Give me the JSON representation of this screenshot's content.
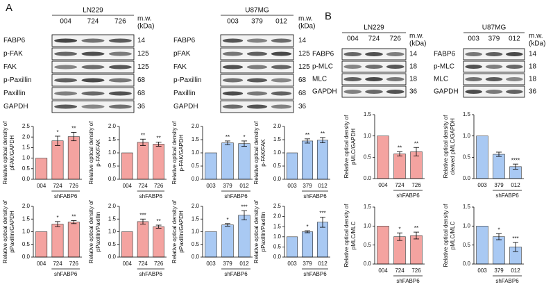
{
  "panel_labels": [
    "A",
    "B"
  ],
  "blots": [
    {
      "title": "LN229",
      "lanes": [
        "004",
        "724",
        "726"
      ],
      "mw_header": [
        "m.w.",
        "(kDa)"
      ],
      "rows": [
        {
          "label": "FABP6",
          "mw": 14
        },
        {
          "label": "p-FAK",
          "mw": 125
        },
        {
          "label": "FAK",
          "mw": 125
        },
        {
          "label": "p-Paxillin",
          "mw": 68
        },
        {
          "label": "Paxillin",
          "mw": 68
        },
        {
          "label": "GAPDH",
          "mw": 36
        }
      ]
    },
    {
      "title": "U87MG",
      "lanes": [
        "003",
        "379",
        "012"
      ],
      "mw_header": [
        "m.w.",
        "(kDa)"
      ],
      "rows": [
        {
          "label": "FABP6",
          "mw": 14
        },
        {
          "label": "pFAK",
          "mw": 125
        },
        {
          "label": "FAK",
          "mw": 125
        },
        {
          "label": "p-Paxillin",
          "mw": 68
        },
        {
          "label": "Paxillin",
          "mw": 68
        },
        {
          "label": "GAPDH",
          "mw": 36
        }
      ]
    },
    {
      "title": "LN229",
      "lanes": [
        "004",
        "724",
        "726"
      ],
      "mw_header": [
        "m.w.",
        "(kDa)"
      ],
      "rows": [
        {
          "label": "FABP6",
          "mw": 14
        },
        {
          "label": "p-MLC",
          "mw": 18
        },
        {
          "label": "MLC",
          "mw": 18
        },
        {
          "label": "GAPDH",
          "mw": 36
        }
      ]
    },
    {
      "title": "U87MG",
      "lanes": [
        "003",
        "379",
        "012"
      ],
      "mw_header": [
        "m.w.",
        "(kDa)"
      ],
      "rows": [
        {
          "label": "FABP6",
          "mw": 14
        },
        {
          "label": "p-MLC",
          "mw": 18
        },
        {
          "label": "MLC",
          "mw": 18
        },
        {
          "label": "GAPDH",
          "mw": 36
        }
      ]
    }
  ],
  "chart_data": [
    {
      "type": "bar",
      "ylabel": [
        "Relative optical density of",
        "pFAK/GAPDH"
      ],
      "categories": [
        "004",
        "724",
        "726"
      ],
      "group_label": "shFABP6",
      "values": [
        1,
        1.82,
        2.02
      ],
      "errors": [
        null,
        0.22,
        0.2
      ],
      "annotations": [
        null,
        "*",
        "**"
      ],
      "color": "#f4a3a0",
      "ylim": [
        0,
        2.5
      ],
      "yticks": [
        {
          "value": 0,
          "label": "0.0"
        },
        0.5,
        {
          "value": 1,
          "label": "1.0"
        },
        1.5,
        {
          "value": 2,
          "label": "2.0"
        },
        2.5
      ]
    },
    {
      "type": "bar",
      "ylabel": [
        "Relative optical density of",
        "p-FAK/FAK"
      ],
      "categories": [
        "004",
        "724",
        "726"
      ],
      "group_label": "shFABP6",
      "values": [
        1,
        1.4,
        1.33
      ],
      "errors": [
        null,
        0.12,
        0.08
      ],
      "annotations": [
        null,
        "**",
        "**"
      ],
      "color": "#f4a3a0",
      "ylim": [
        0,
        2
      ],
      "yticks": [
        {
          "value": 0,
          "label": "0.0"
        },
        0.5,
        {
          "value": 1,
          "label": "1.0"
        },
        1.5,
        {
          "value": 2,
          "label": "2.0"
        }
      ]
    },
    {
      "type": "bar",
      "ylabel": [
        "Relative optical density of",
        "p-FAK/GAPDH"
      ],
      "categories": [
        "003",
        "379",
        "012"
      ],
      "group_label": "shFABP6",
      "values": [
        1,
        1.38,
        1.35
      ],
      "errors": [
        null,
        0.07,
        0.1
      ],
      "annotations": [
        null,
        "**",
        "*"
      ],
      "color": "#a9c9f3",
      "ylim": [
        0,
        2
      ],
      "yticks": [
        {
          "value": 0,
          "label": "0.0"
        },
        0.5,
        {
          "value": 1,
          "label": "1.0"
        },
        1.5,
        {
          "value": 2,
          "label": "2.0"
        }
      ]
    },
    {
      "type": "bar",
      "ylabel": [
        "Relative optical density of",
        "p-FAK/FAK"
      ],
      "categories": [
        "003",
        "379",
        "012"
      ],
      "group_label": "shFABP6",
      "values": [
        1,
        1.45,
        1.48
      ],
      "errors": [
        null,
        0.08,
        0.1
      ],
      "annotations": [
        null,
        "**",
        "**"
      ],
      "color": "#a9c9f3",
      "ylim": [
        0,
        2
      ],
      "yticks": [
        {
          "value": 0,
          "label": "0.0"
        },
        0.5,
        {
          "value": 1,
          "label": "1.0"
        },
        1.5,
        {
          "value": 2,
          "label": "2.0"
        }
      ]
    },
    {
      "type": "bar",
      "ylabel": [
        "Relative optical density of",
        "pPaxillin/GAPDH"
      ],
      "categories": [
        "004",
        "724",
        "726"
      ],
      "group_label": "shFABP6",
      "values": [
        1,
        1.3,
        1.38
      ],
      "errors": [
        null,
        0.1,
        0.06
      ],
      "annotations": [
        null,
        "*",
        "**"
      ],
      "color": "#f4a3a0",
      "ylim": [
        0,
        2
      ],
      "yticks": [
        {
          "value": 0,
          "label": "0.0"
        },
        0.5,
        {
          "value": 1,
          "label": "1.0"
        },
        1.5,
        {
          "value": 2,
          "label": "2.0"
        }
      ]
    },
    {
      "type": "bar",
      "ylabel": [
        "Relative optical density of",
        "pPaxillin/Paxillin"
      ],
      "categories": [
        "004",
        "724",
        "726"
      ],
      "group_label": "shFABP6",
      "values": [
        1,
        1.4,
        1.2
      ],
      "errors": [
        null,
        0.1,
        0.06
      ],
      "annotations": [
        null,
        "***",
        "**"
      ],
      "color": "#f4a3a0",
      "ylim": [
        0,
        2
      ],
      "yticks": [
        {
          "value": 0,
          "label": "0.0"
        },
        0.5,
        {
          "value": 1,
          "label": "1.0"
        },
        1.5,
        {
          "value": 2,
          "label": "2.0"
        }
      ]
    },
    {
      "type": "bar",
      "ylabel": [
        "Relative optical density of",
        "pPaxillin/GAPDH"
      ],
      "categories": [
        "003",
        "379",
        "012"
      ],
      "group_label": "shFABP6",
      "values": [
        1,
        1.27,
        1.65
      ],
      "errors": [
        null,
        0.05,
        0.18
      ],
      "annotations": [
        null,
        "*",
        "***"
      ],
      "color": "#a9c9f3",
      "ylim": [
        0,
        2
      ],
      "yticks": [
        {
          "value": 0,
          "label": "0.0"
        },
        0.5,
        {
          "value": 1,
          "label": "1.0"
        },
        1.5,
        {
          "value": 2,
          "label": "2.0"
        }
      ]
    },
    {
      "type": "bar",
      "ylabel": [
        "Relative optical density of",
        "pPaxillin/Paxillin"
      ],
      "categories": [
        "003",
        "379",
        "012"
      ],
      "group_label": "shFABP6",
      "values": [
        1,
        1.25,
        1.72
      ],
      "errors": [
        null,
        0.05,
        0.25
      ],
      "annotations": [
        null,
        "*",
        "***"
      ],
      "color": "#a9c9f3",
      "ylim": [
        0,
        2.5
      ],
      "yticks": [
        {
          "value": 0,
          "label": "0.0"
        },
        0.5,
        {
          "value": 1,
          "label": "1.0"
        },
        1.5,
        {
          "value": 2,
          "label": "2.0"
        },
        2.5
      ]
    },
    {
      "type": "bar",
      "ylabel": [
        "Relative optical density of",
        "pMLC/GAPDH"
      ],
      "categories": [
        "004",
        "724",
        "726"
      ],
      "group_label": "shFABP6",
      "values": [
        1,
        0.58,
        0.63
      ],
      "errors": [
        null,
        0.05,
        0.1
      ],
      "annotations": [
        null,
        "**",
        "**"
      ],
      "color": "#f4a3a0",
      "ylim": [
        0,
        1.5
      ],
      "yticks": [
        {
          "value": 0,
          "label": "0.0"
        },
        0.5,
        {
          "value": 1,
          "label": "1.0"
        },
        1.5
      ]
    },
    {
      "type": "bar",
      "ylabel": [
        "Relative optical density of",
        "cleaved pMLC/GAPDH"
      ],
      "categories": [
        "003",
        "379",
        "012"
      ],
      "group_label": "shFABP6",
      "values": [
        1,
        0.57,
        0.28
      ],
      "errors": [
        null,
        0.05,
        0.06
      ],
      "annotations": [
        null,
        null,
        "****"
      ],
      "color": "#a9c9f3",
      "ylim": [
        0,
        1.5
      ],
      "yticks": [
        {
          "value": 0,
          "label": "0.0"
        },
        0.5,
        {
          "value": 1,
          "label": "1.0"
        },
        1.5
      ]
    },
    {
      "type": "bar",
      "ylabel": [
        "Relative optical density of",
        "pMLC/MLC"
      ],
      "categories": [
        "004",
        "724",
        "726"
      ],
      "group_label": "shFABP6",
      "values": [
        1,
        0.72,
        0.75
      ],
      "errors": [
        null,
        0.1,
        0.09
      ],
      "annotations": [
        null,
        "*",
        "**"
      ],
      "color": "#f4a3a0",
      "ylim": [
        0,
        1.5
      ],
      "yticks": [
        {
          "value": 0,
          "label": "0.0"
        },
        0.5,
        {
          "value": 1,
          "label": "1.0"
        },
        1.5
      ]
    },
    {
      "type": "bar",
      "ylabel": [
        "Relative optical density of",
        "pMLC/MLC"
      ],
      "categories": [
        "003",
        "379",
        "012"
      ],
      "group_label": "shFABP6",
      "values": [
        1,
        0.72,
        0.45
      ],
      "errors": [
        null,
        0.08,
        0.12
      ],
      "annotations": [
        null,
        "*",
        "***"
      ],
      "color": "#a9c9f3",
      "ylim": [
        0,
        1.5
      ],
      "yticks": [
        {
          "value": 0,
          "label": "0.0"
        },
        0.5,
        {
          "value": 1,
          "label": "1.0"
        },
        1.5
      ]
    }
  ]
}
